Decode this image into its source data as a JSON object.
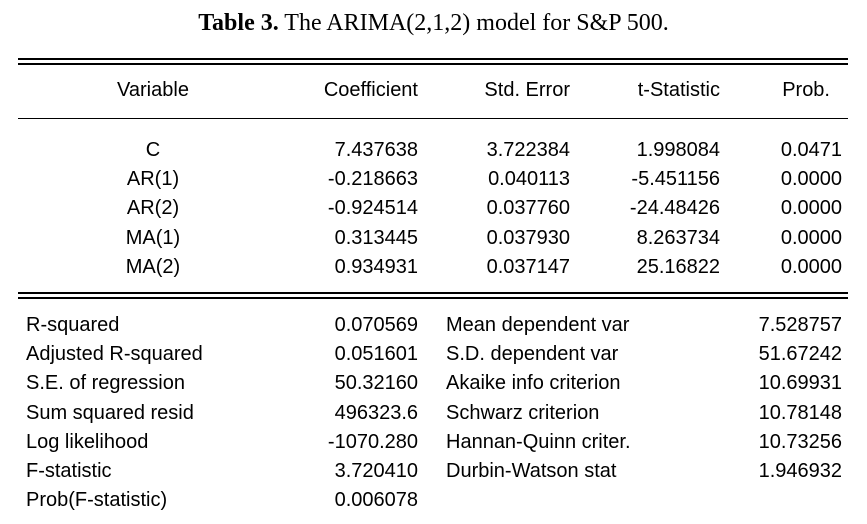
{
  "caption": {
    "label": "Table 3.",
    "text": " The ARIMA(2,1,2) model for S&P 500."
  },
  "table": {
    "headers": [
      "Variable",
      "Coefficient",
      "Std. Error",
      "t-Statistic",
      "Prob."
    ],
    "rows": [
      [
        "C",
        "7.437638",
        "3.722384",
        "1.998084",
        "0.0471"
      ],
      [
        "AR(1)",
        "-0.218663",
        "0.040113",
        "-5.451156",
        "0.0000"
      ],
      [
        "AR(2)",
        "-0.924514",
        "0.037760",
        "-24.48426",
        "0.0000"
      ],
      [
        "MA(1)",
        "0.313445",
        "0.037930",
        "8.263734",
        "0.0000"
      ],
      [
        "MA(2)",
        "0.934931",
        "0.037147",
        "25.16822",
        "0.0000"
      ]
    ]
  },
  "stats": [
    {
      "label": "R-squared",
      "value": "0.070569",
      "label2": "Mean dependent var",
      "value2": "7.528757"
    },
    {
      "label": "Adjusted R-squared",
      "value": "0.051601",
      "label2": "S.D. dependent var",
      "value2": "51.67242"
    },
    {
      "label": "S.E. of regression",
      "value": "50.32160",
      "label2": "Akaike info criterion",
      "value2": "10.69931"
    },
    {
      "label": "Sum squared resid",
      "value": "496323.6",
      "label2": "Schwarz criterion",
      "value2": "10.78148"
    },
    {
      "label": "Log likelihood",
      "value": "-1070.280",
      "label2": "Hannan-Quinn criter.",
      "value2": "10.73256"
    },
    {
      "label": "F-statistic",
      "value": "3.720410",
      "label2": "Durbin-Watson stat",
      "value2": "1.946932"
    },
    {
      "label": "Prob(F-statistic)",
      "value": "0.006078"
    }
  ]
}
